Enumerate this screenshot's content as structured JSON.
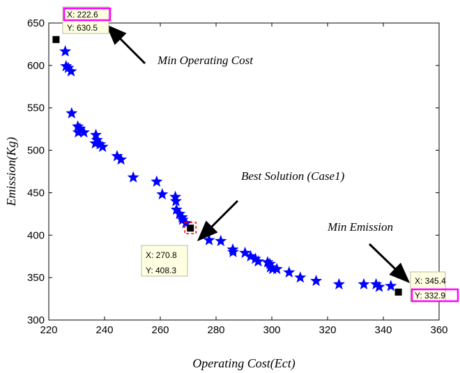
{
  "chart_data": {
    "type": "scatter",
    "title": "",
    "xlabel": "Operating Cost(Ect)",
    "ylabel": "Emission(Kg)",
    "xlim": [
      220,
      360
    ],
    "ylim": [
      300,
      650
    ],
    "xticks": [
      220,
      240,
      260,
      280,
      300,
      320,
      340,
      360
    ],
    "yticks": [
      300,
      350,
      400,
      450,
      500,
      550,
      600,
      650
    ],
    "grid": false,
    "legend": "none",
    "series": [
      {
        "marker": "star",
        "color": "#0000ff",
        "points": [
          [
            225.9,
            616.5
          ],
          [
            226.2,
            599.0
          ],
          [
            227.0,
            597.0
          ],
          [
            228.0,
            593.0
          ],
          [
            228.2,
            543.5
          ],
          [
            230.4,
            528.0
          ],
          [
            230.6,
            521.0
          ],
          [
            231.2,
            525.5
          ],
          [
            232.6,
            521.0
          ],
          [
            236.9,
            518.0
          ],
          [
            237.3,
            512.0
          ],
          [
            236.7,
            508.0
          ],
          [
            238.4,
            507.0
          ],
          [
            239.3,
            504.0
          ],
          [
            244.5,
            493.0
          ],
          [
            245.9,
            489.0
          ],
          [
            250.3,
            468.0
          ],
          [
            258.7,
            463.0
          ],
          [
            260.7,
            448.0
          ],
          [
            265.4,
            445.0
          ],
          [
            265.6,
            440.0
          ],
          [
            265.8,
            430.0
          ],
          [
            266.9,
            425.0
          ],
          [
            267.8,
            421.0
          ],
          [
            268.0,
            418.0
          ],
          [
            269.2,
            414.0
          ],
          [
            277.5,
            394.0
          ],
          [
            281.7,
            393.0
          ],
          [
            286.0,
            383.0
          ],
          [
            286.1,
            380.0
          ],
          [
            290.4,
            379.0
          ],
          [
            292.4,
            375.0
          ],
          [
            294.1,
            372.0
          ],
          [
            295.1,
            369.0
          ],
          [
            298.5,
            368.0
          ],
          [
            299.3,
            366.0
          ],
          [
            299.5,
            362.0
          ],
          [
            300.3,
            360.0
          ],
          [
            301.8,
            360.0
          ],
          [
            306.2,
            356.0
          ],
          [
            310.2,
            350.0
          ],
          [
            315.9,
            346.0
          ],
          [
            324.1,
            342.0
          ],
          [
            333.0,
            342.0
          ],
          [
            337.4,
            342.0
          ],
          [
            338.5,
            339.0
          ],
          [
            342.7,
            340.0
          ]
        ]
      }
    ],
    "datatips": [
      {
        "id": "min-cost",
        "x": 222.6,
        "y": 630.5,
        "x_text": "X: 222.6",
        "y_text": "Y: 630.5",
        "highlight": "x"
      },
      {
        "id": "best",
        "x": 270.8,
        "y": 408.3,
        "x_text": "X: 270.8",
        "y_text": "Y: 408.3",
        "highlight": "none"
      },
      {
        "id": "min-emission",
        "x": 345.4,
        "y": 332.9,
        "x_text": "X: 345.4",
        "y_text": "Y: 332.9",
        "highlight": "y"
      }
    ],
    "annotations": [
      {
        "id": "min-operating-cost",
        "text": "Min Operating Cost",
        "target": [
          222.6,
          630.5
        ]
      },
      {
        "id": "best-solution",
        "text": "Best Solution (Case1)",
        "target": [
          270.8,
          408.3
        ]
      },
      {
        "id": "min-emission",
        "text": "Min Emission",
        "target": [
          345.4,
          332.9
        ]
      }
    ],
    "colors": {
      "marker": "#0000ff",
      "highlight": "#ff00ff",
      "tip_bg": "#ffffe1",
      "tip_border": "#b8b8a0",
      "selected": "#ff0000"
    }
  }
}
